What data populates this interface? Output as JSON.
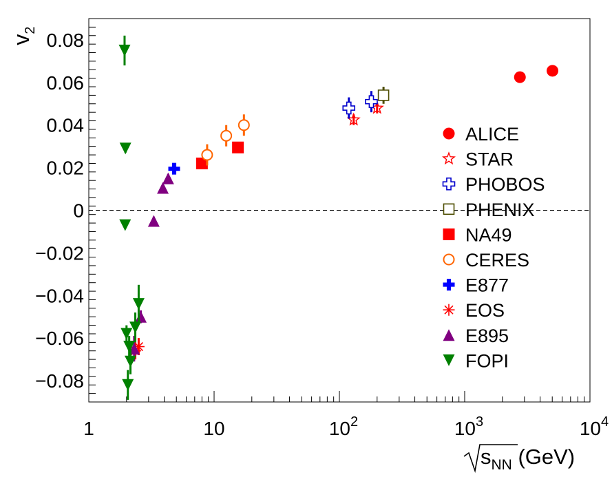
{
  "chart_data": {
    "type": "scatter",
    "xscale": "log",
    "xlim": [
      1,
      10000
    ],
    "ylim": [
      -0.09,
      0.09
    ],
    "xlabel": {
      "radical": "s",
      "sub": "NN",
      "unit": "(GeV)"
    },
    "ylabel": {
      "main": "v",
      "sub": "2"
    },
    "x_ticks": [
      {
        "value": 1,
        "label": "1"
      },
      {
        "value": 10,
        "label": "10"
      },
      {
        "value": 100,
        "base": "10",
        "exp": "2"
      },
      {
        "value": 1000,
        "base": "10",
        "exp": "3"
      },
      {
        "value": 10000,
        "base": "10",
        "exp": "4"
      }
    ],
    "y_ticks": [
      {
        "value": 0.08,
        "label": "0.08"
      },
      {
        "value": 0.06,
        "label": "0.06"
      },
      {
        "value": 0.04,
        "label": "0.04"
      },
      {
        "value": 0.02,
        "label": "0.02"
      },
      {
        "value": 0,
        "label": "0"
      },
      {
        "value": -0.02,
        "label": "−0.02"
      },
      {
        "value": -0.04,
        "label": "−0.04"
      },
      {
        "value": -0.06,
        "label": "−0.06"
      },
      {
        "value": -0.08,
        "label": "−0.08"
      }
    ],
    "reference_line": {
      "y": 0,
      "style": "dashed"
    },
    "legend_position": "right",
    "series": [
      {
        "name": "ALICE",
        "marker": "circle-filled",
        "color": "#ff0000",
        "points": [
          {
            "x": 2760,
            "y": 0.0625,
            "err": 0
          },
          {
            "x": 5020,
            "y": 0.0655,
            "err": 0
          }
        ]
      },
      {
        "name": "STAR",
        "marker": "star-open",
        "color": "#ff0000",
        "points": [
          {
            "x": 130,
            "y": 0.0425,
            "err": 0.0025
          },
          {
            "x": 200,
            "y": 0.048,
            "err": 0.0025
          }
        ]
      },
      {
        "name": "PHOBOS",
        "marker": "cross-open",
        "color": "#0000cc",
        "points": [
          {
            "x": 119,
            "y": 0.048,
            "err": 0.005
          },
          {
            "x": 180,
            "y": 0.051,
            "err": 0.005
          }
        ]
      },
      {
        "name": "PHENIX",
        "marker": "square-open",
        "color": "#4d4d00",
        "points": [
          {
            "x": 225,
            "y": 0.054,
            "err": 0.004
          }
        ]
      },
      {
        "name": "NA49",
        "marker": "square-filled",
        "color": "#ff0000",
        "points": [
          {
            "x": 8.0,
            "y": 0.022,
            "err": 0.002
          },
          {
            "x": 15.5,
            "y": 0.0295,
            "err": 0.002
          }
        ]
      },
      {
        "name": "CERES",
        "marker": "circle-open",
        "color": "#ff6600",
        "points": [
          {
            "x": 8.8,
            "y": 0.026,
            "err": 0.005
          },
          {
            "x": 12.5,
            "y": 0.035,
            "err": 0.005
          },
          {
            "x": 17.3,
            "y": 0.04,
            "err": 0.005
          }
        ]
      },
      {
        "name": "E877",
        "marker": "cross-filled",
        "color": "#0000ff",
        "points": [
          {
            "x": 4.8,
            "y": 0.0195,
            "err": 0.0015
          }
        ]
      },
      {
        "name": "EOS",
        "marker": "asterisk",
        "color": "#ff0000",
        "points": [
          {
            "x": 2.35,
            "y": -0.066,
            "err": 0.004
          },
          {
            "x": 2.5,
            "y": -0.064,
            "err": 0.004
          }
        ]
      },
      {
        "name": "E895",
        "marker": "triangle-up",
        "color": "#800080",
        "points": [
          {
            "x": 2.3,
            "y": -0.065,
            "err": 0.006
          },
          {
            "x": 2.6,
            "y": -0.05,
            "err": 0.003
          },
          {
            "x": 3.3,
            "y": -0.005,
            "err": 0.002
          },
          {
            "x": 3.9,
            "y": 0.0105,
            "err": 0.002
          },
          {
            "x": 4.3,
            "y": 0.015,
            "err": 0.002
          }
        ]
      },
      {
        "name": "FOPI",
        "marker": "triangle-down",
        "color": "#008000",
        "points": [
          {
            "x": 1.93,
            "y": 0.075,
            "err": 0.007
          },
          {
            "x": 1.96,
            "y": 0.029,
            "err": 0.002
          },
          {
            "x": 1.95,
            "y": -0.007,
            "err": 0.001
          },
          {
            "x": 2.0,
            "y": -0.058,
            "err": 0.004
          },
          {
            "x": 2.1,
            "y": -0.064,
            "err": 0.005
          },
          {
            "x": 2.15,
            "y": -0.071,
            "err": 0.006
          },
          {
            "x": 2.05,
            "y": -0.082,
            "err": 0.007
          },
          {
            "x": 2.35,
            "y": -0.055,
            "err": 0.007
          },
          {
            "x": 2.5,
            "y": -0.044,
            "err": 0.009
          }
        ]
      }
    ]
  }
}
